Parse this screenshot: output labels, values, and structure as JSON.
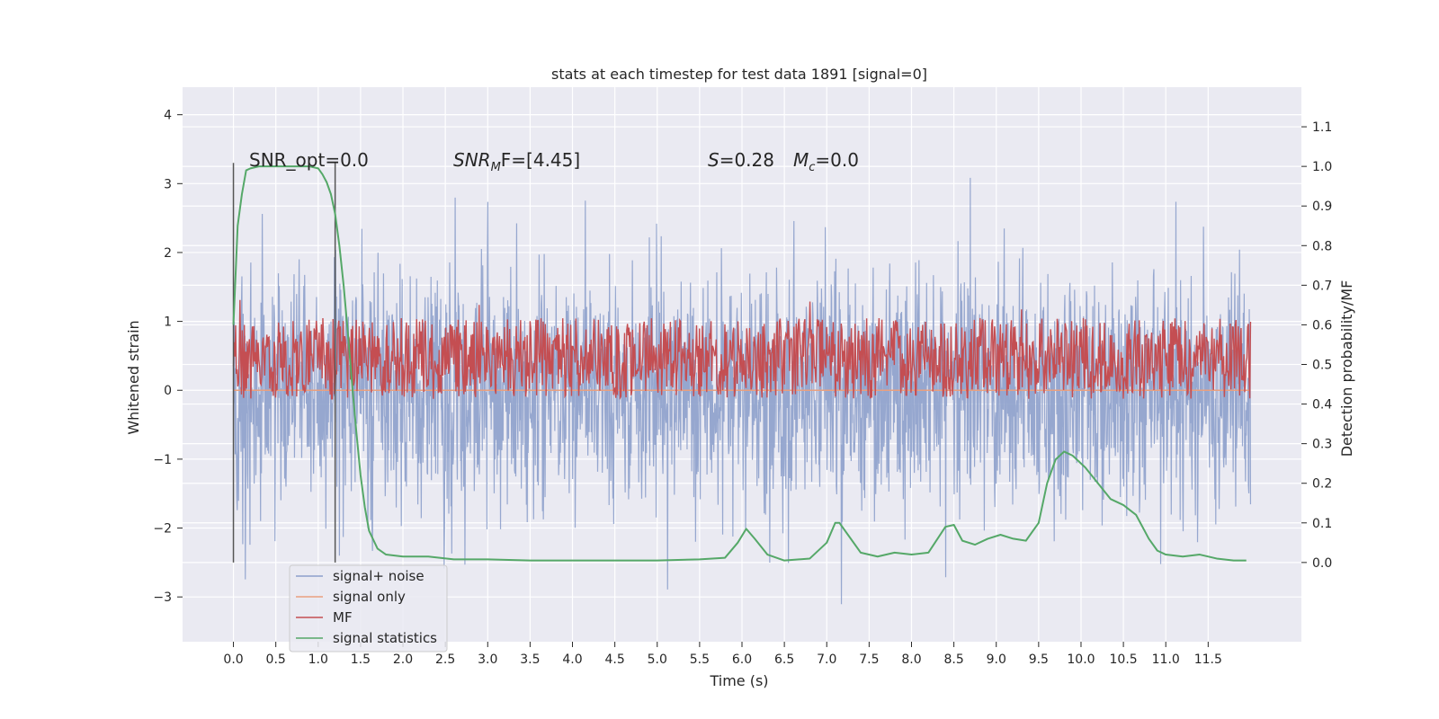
{
  "chart_data": {
    "type": "line",
    "title": "stats at each timestep for test data 1891 [signal=0]",
    "xlabel": "Time (s)",
    "ylabel_left": "Whitened strain",
    "ylabel_right": "Detection probability/MF",
    "xlim": [
      -0.6,
      12.6
    ],
    "ylim_left": [
      -3.65,
      4.4
    ],
    "ylim_right": [
      -0.2,
      1.2
    ],
    "x_ticks": [
      "0.0",
      "0.5",
      "1.0",
      "1.5",
      "2.0",
      "2.5",
      "3.0",
      "3.5",
      "4.0",
      "4.5",
      "5.0",
      "5.5",
      "6.0",
      "6.5",
      "7.0",
      "7.5",
      "8.0",
      "8.5",
      "9.0",
      "9.5",
      "10.0",
      "10.5",
      "11.0",
      "11.5"
    ],
    "y_ticks_left": [
      "−3",
      "−2",
      "−1",
      "0",
      "1",
      "2",
      "3",
      "4"
    ],
    "y_ticks_right": [
      "0.0",
      "0.1",
      "0.2",
      "0.3",
      "0.4",
      "0.5",
      "0.6",
      "0.7",
      "0.8",
      "0.9",
      "1.0",
      "1.1"
    ],
    "grid": true,
    "legend_position": "lower-left",
    "annotations": {
      "snr_opt": "SNR_opt=0.0",
      "snr_mf": "SNR",
      "snr_mf_sub": "M",
      "snr_mf_rest": "F=[4.45]",
      "s_label": "S",
      "s_value": "=0.28",
      "mc_label": "M",
      "mc_sub": "c",
      "mc_value": "=0.0"
    },
    "vertical_markers": [
      0.0,
      1.2
    ],
    "series": [
      {
        "name": "signal+ noise",
        "color": "#8da0cb",
        "axis": "left",
        "kind": "noise",
        "x_range": [
          0.0,
          12.0
        ],
        "band": [
          -2.0,
          2.2
        ]
      },
      {
        "name": "signal only",
        "color": "#e9a07f",
        "axis": "left",
        "x_range": [
          0.0,
          12.0
        ],
        "values": [
          0.0
        ]
      },
      {
        "name": "MF",
        "color": "#c44e52",
        "axis": "right",
        "kind": "noise",
        "x_range": [
          0.0,
          12.0
        ],
        "band": [
          0.43,
          0.6
        ]
      },
      {
        "name": "signal statistics",
        "color": "#55a868",
        "axis": "right",
        "x": [
          0.0,
          0.05,
          0.1,
          0.15,
          0.2,
          0.3,
          0.5,
          0.7,
          0.9,
          1.0,
          1.05,
          1.1,
          1.15,
          1.2,
          1.25,
          1.3,
          1.35,
          1.4,
          1.45,
          1.5,
          1.55,
          1.6,
          1.7,
          1.8,
          2.0,
          2.3,
          2.6,
          3.0,
          3.5,
          4.0,
          4.5,
          5.0,
          5.5,
          5.8,
          5.95,
          6.05,
          6.15,
          6.3,
          6.5,
          6.8,
          7.0,
          7.1,
          7.15,
          7.25,
          7.4,
          7.6,
          7.8,
          8.0,
          8.2,
          8.4,
          8.5,
          8.6,
          8.75,
          8.9,
          9.05,
          9.2,
          9.35,
          9.5,
          9.6,
          9.7,
          9.8,
          9.9,
          10.05,
          10.2,
          10.35,
          10.5,
          10.65,
          10.8,
          10.9,
          11.0,
          11.2,
          11.4,
          11.6,
          11.8,
          11.95
        ],
        "values": [
          0.6,
          0.85,
          0.93,
          0.99,
          0.995,
          1.0,
          1.0,
          1.0,
          1.0,
          0.995,
          0.98,
          0.96,
          0.93,
          0.88,
          0.8,
          0.7,
          0.58,
          0.45,
          0.33,
          0.22,
          0.14,
          0.08,
          0.035,
          0.02,
          0.015,
          0.015,
          0.008,
          0.008,
          0.005,
          0.005,
          0.005,
          0.005,
          0.008,
          0.012,
          0.05,
          0.085,
          0.06,
          0.02,
          0.005,
          0.01,
          0.05,
          0.1,
          0.1,
          0.07,
          0.025,
          0.015,
          0.025,
          0.02,
          0.025,
          0.09,
          0.095,
          0.055,
          0.045,
          0.06,
          0.07,
          0.06,
          0.055,
          0.1,
          0.2,
          0.26,
          0.28,
          0.27,
          0.24,
          0.2,
          0.16,
          0.145,
          0.12,
          0.06,
          0.03,
          0.02,
          0.015,
          0.02,
          0.01,
          0.005,
          0.005
        ]
      }
    ]
  }
}
